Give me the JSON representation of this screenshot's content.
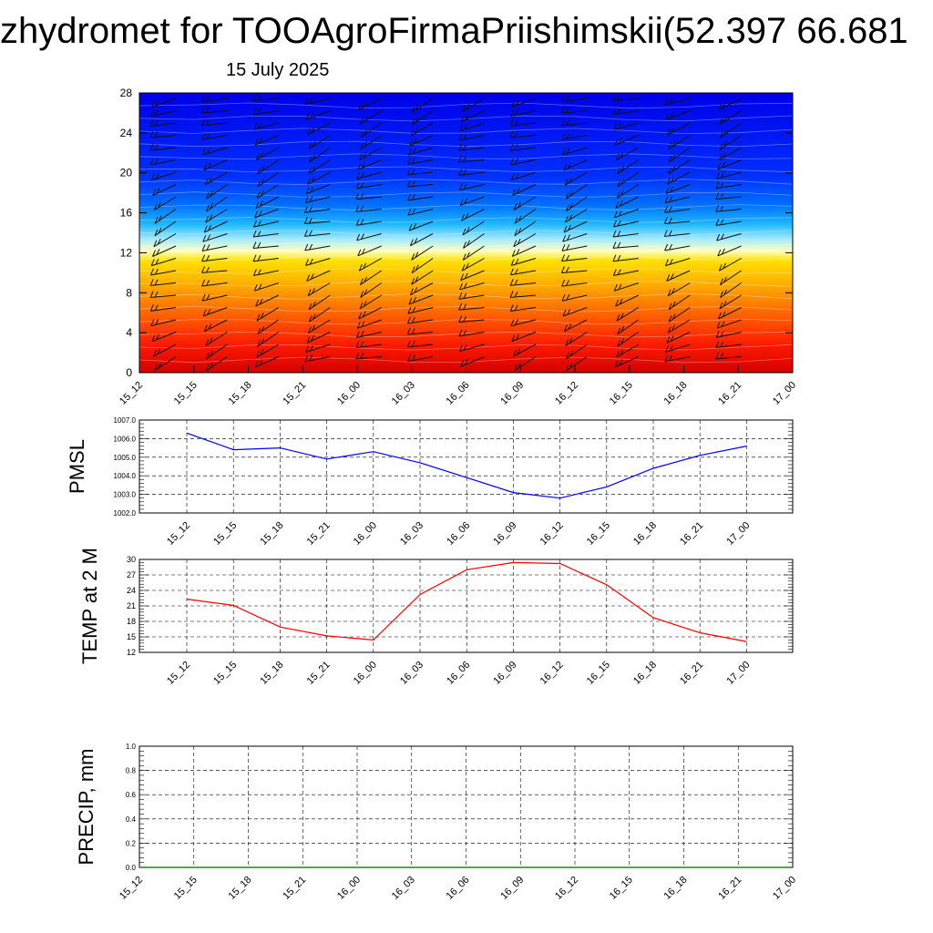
{
  "header": {
    "title": "zhydromet for TOOAgroFirmaPriishimskii(52.397 66.681",
    "subtitle": "15 July 2025"
  },
  "time_labels": [
    "15_12",
    "15_15",
    "15_18",
    "15_21",
    "16_00",
    "16_03",
    "16_06",
    "16_09",
    "16_12",
    "16_15",
    "16_18",
    "16_21",
    "17_00"
  ],
  "colors": {
    "pmsl_line": "#0000ff",
    "temp_line": "#ff0000",
    "precip_line": "#006400",
    "grid": "#000000"
  },
  "chart_data": [
    {
      "type": "heatmap",
      "title": "",
      "xlabel": "",
      "ylabel": "",
      "x": [
        "15_12",
        "15_15",
        "15_18",
        "15_21",
        "16_00",
        "16_03",
        "16_06",
        "16_09",
        "16_12",
        "16_15",
        "16_18",
        "16_21",
        "17_00"
      ],
      "yticks": [
        "0",
        "4",
        "8",
        "12",
        "16",
        "20",
        "24",
        "28"
      ],
      "ylim": [
        0,
        28
      ],
      "colormap": [
        "#d40000",
        "#ff1a00",
        "#ff6a00",
        "#ffb000",
        "#ffe000",
        "#ffffc0",
        "#a0e8ff",
        "#20b8ff",
        "#0070ff",
        "#0030ff",
        "#0000e8"
      ],
      "overlay": "wind barbs"
    },
    {
      "type": "line",
      "ylabel": "PMSL",
      "x": [
        "15_12",
        "15_15",
        "15_18",
        "15_21",
        "16_00",
        "16_03",
        "16_06",
        "16_09",
        "16_12",
        "16_15",
        "16_18",
        "16_21",
        "17_00"
      ],
      "xticks": [
        "15_12",
        "15_15",
        "15_18",
        "15_21",
        "16_00",
        "16_03",
        "16_06",
        "16_09",
        "16_12",
        "16_15",
        "16_18",
        "16_21",
        "17_00"
      ],
      "yticks": [
        "1002.0",
        "1003.0",
        "1004.0",
        "1005.0",
        "1006.0",
        "1007.0"
      ],
      "ylim": [
        1002.0,
        1007.0
      ],
      "grid": true,
      "series": [
        {
          "values": [
            1006.3,
            1005.4,
            1005.5,
            1004.9,
            1005.3,
            1004.7,
            1003.9,
            1003.1,
            1002.8,
            1003.4,
            1004.4,
            1005.1,
            1005.6
          ]
        }
      ]
    },
    {
      "type": "line",
      "ylabel": "TEMP at 2 M",
      "x": [
        "15_12",
        "15_15",
        "15_18",
        "15_21",
        "16_00",
        "16_03",
        "16_06",
        "16_09",
        "16_12",
        "16_15",
        "16_18",
        "16_21",
        "17_00"
      ],
      "xticks": [
        "15_12",
        "15_15",
        "15_18",
        "15_21",
        "16_00",
        "16_03",
        "16_06",
        "16_09",
        "16_12",
        "16_15",
        "16_18",
        "16_21",
        "17_00"
      ],
      "yticks": [
        "12",
        "15",
        "18",
        "21",
        "24",
        "27",
        "30"
      ],
      "ylim": [
        12,
        30
      ],
      "grid": true,
      "series": [
        {
          "values": [
            22.3,
            21.1,
            16.9,
            15.2,
            14.4,
            23.2,
            28.0,
            29.4,
            29.2,
            25.1,
            18.7,
            15.8,
            14.1
          ]
        }
      ]
    },
    {
      "type": "line",
      "ylabel": "PRECIP, mm",
      "x": [
        "15_12",
        "15_15",
        "15_18",
        "15_21",
        "16_00",
        "16_03",
        "16_06",
        "16_09",
        "16_12",
        "16_15",
        "16_18",
        "16_21",
        "17_00"
      ],
      "xticks": [
        "15_12",
        "15_15",
        "15_18",
        "15_21",
        "16_00",
        "16_03",
        "16_06",
        "16_09",
        "16_12",
        "16_15",
        "16_18",
        "16_21",
        "17_00"
      ],
      "yticks": [
        "0.0",
        "0.2",
        "0.4",
        "0.6",
        "0.8",
        "1.0"
      ],
      "ylim": [
        0.0,
        1.0
      ],
      "grid": true,
      "series": [
        {
          "values": [
            0,
            0,
            0,
            0,
            0,
            0,
            0,
            0,
            0,
            0,
            0,
            0,
            0
          ]
        }
      ]
    }
  ]
}
